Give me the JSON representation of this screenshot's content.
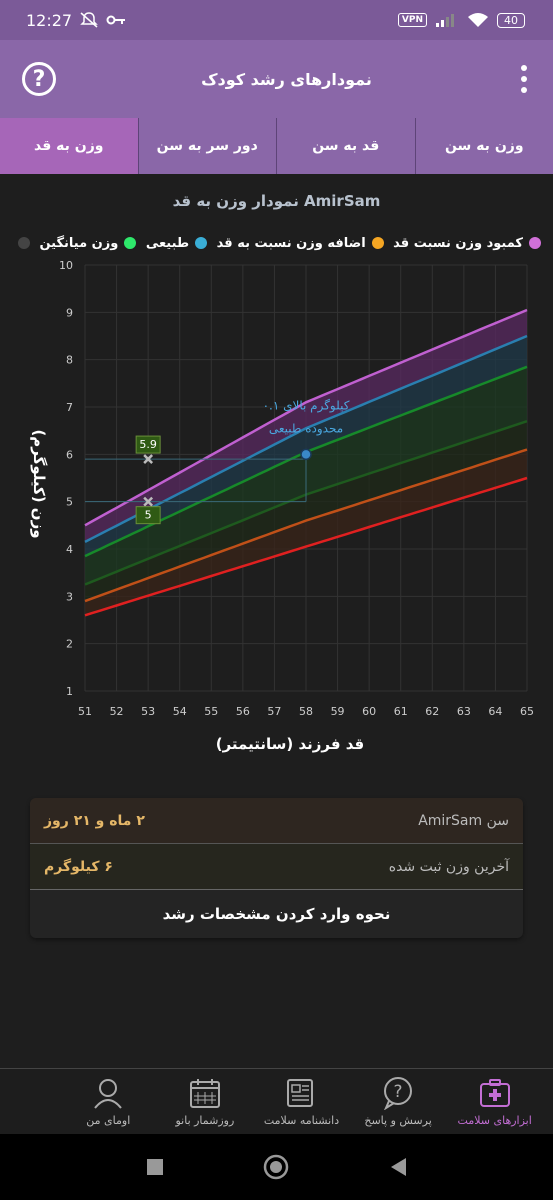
{
  "status_bar": {
    "time": "12:27",
    "vpn": "VPN",
    "battery": "40"
  },
  "app_bar": {
    "title": "نمودارهای رشد کودک",
    "help_icon": "help-circle-icon",
    "menu_icon": "more-vertical-icon"
  },
  "tabs": [
    {
      "label": "وزن به سن",
      "active": false
    },
    {
      "label": "قد به سن",
      "active": false
    },
    {
      "label": "دور سر به سن",
      "active": false
    },
    {
      "label": "وزن به قد",
      "active": true
    }
  ],
  "chart_header": {
    "title": "نمودار وزن به قد AmirSam"
  },
  "legend": [
    {
      "label": "کمبود وزن نسبت قد",
      "color": "#d070d8"
    },
    {
      "label": "اضافه وزن نسبت به قد",
      "color": "#f5a623"
    },
    {
      "label": "طبیعی",
      "color": "#3aaed6"
    },
    {
      "label": "وزن میانگین",
      "color": "#2ee86b"
    },
    {
      "label": "",
      "color": "#444444"
    }
  ],
  "chart_data": {
    "type": "line",
    "title": "نمودار وزن به قد AmirSam",
    "xlabel": "قد فرزند (سانتیمتر)",
    "ylabel": "وزن (کیلوگرم)",
    "xlim": [
      51,
      65
    ],
    "ylim": [
      1,
      10
    ],
    "x_ticks": [
      51,
      52,
      53,
      54,
      55,
      56,
      57,
      58,
      59,
      60,
      61,
      62,
      63,
      64,
      65
    ],
    "y_ticks": [
      1,
      2,
      3,
      4,
      5,
      6,
      7,
      8,
      9,
      10
    ],
    "grid": true,
    "series": [
      {
        "color": "#c060d0",
        "values": [
          [
            51,
            4.5
          ],
          [
            58,
            7.1
          ],
          [
            65,
            9.05
          ]
        ]
      },
      {
        "color": "#2a7fb0",
        "values": [
          [
            51,
            4.15
          ],
          [
            58,
            6.55
          ],
          [
            65,
            8.5
          ]
        ]
      },
      {
        "color": "#178a2a",
        "values": [
          [
            51,
            3.85
          ],
          [
            58,
            6.05
          ],
          [
            65,
            7.85
          ]
        ]
      },
      {
        "color": "#1e5a1e",
        "values": [
          [
            51,
            3.25
          ],
          [
            58,
            5.15
          ],
          [
            65,
            6.7
          ]
        ]
      },
      {
        "color": "#c05018",
        "values": [
          [
            51,
            2.9
          ],
          [
            58,
            4.6
          ],
          [
            65,
            6.1
          ]
        ]
      },
      {
        "color": "#e02020",
        "values": [
          [
            51,
            2.6
          ],
          [
            58,
            4.05
          ],
          [
            65,
            5.5
          ]
        ]
      }
    ],
    "points": [
      {
        "x": 53,
        "y": 5.9,
        "label": "5.9"
      },
      {
        "x": 53,
        "y": 5,
        "label": "5"
      },
      {
        "x": 58,
        "y": 6,
        "label": ""
      }
    ],
    "annotation": {
      "line1": "۰.۱ کیلوگرم بالای",
      "line2": "محدوده طبیعی",
      "x": 58,
      "y": 6
    }
  },
  "info": {
    "row1_label": "سن AmirSam",
    "row1_value": "۲ ماه و ۲۱ روز",
    "row2_label": "آخرین وزن ثبت شده",
    "row2_value": "۶ کیلوگرم",
    "row3_label": "نحوه وارد کردن مشخصات رشد"
  },
  "bottom_nav": [
    {
      "label": "ابزارهای سلامت",
      "icon": "health-kit-icon",
      "active": true
    },
    {
      "label": "پرسش و پاسخ",
      "icon": "question-bubble-icon",
      "active": false
    },
    {
      "label": "دانشنامه سلامت",
      "icon": "encyclopedia-icon",
      "active": false
    },
    {
      "label": "روزشمار بانو",
      "icon": "calendar-icon",
      "active": false
    },
    {
      "label": "اومای من",
      "icon": "profile-icon",
      "active": false
    }
  ]
}
